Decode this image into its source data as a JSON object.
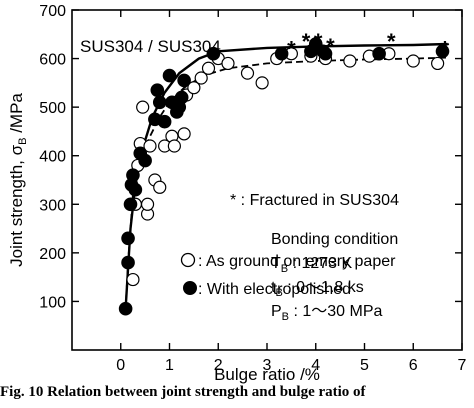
{
  "chart_data": {
    "type": "scatter",
    "xlabel": "Bulge ratio  /%",
    "ylabel": "Joint strength, σ",
    "ylabel_sub": "B",
    "ylabel_unit": " /MPa",
    "xlim": [
      -1,
      7
    ],
    "ylim": [
      0,
      700
    ],
    "x_ticks": [
      0,
      1,
      2,
      3,
      4,
      5,
      6,
      7
    ],
    "y_ticks": [
      100,
      200,
      300,
      400,
      500,
      600,
      700
    ],
    "grid": false,
    "materials_label": "SUS304 / SUS304",
    "fracture_note": "* : Fractured in SUS304",
    "bonding": {
      "title": "Bonding condition",
      "lines": [
        {
          "sym": "T",
          "sub": "B",
          "val": " : 1273 K"
        },
        {
          "sym": "t",
          "sub": "B",
          "val": " : 0～1.8 ks"
        },
        {
          "sym": "P",
          "sub": "B",
          "val": " : 1～30 MPa"
        }
      ]
    },
    "series": [
      {
        "name": "As ground on emery paper",
        "legend_label": " : As ground on emery paper",
        "marker": "open-circle",
        "curve": "dashed",
        "points": [
          [
            0.25,
            145
          ],
          [
            0.3,
            300
          ],
          [
            0.35,
            380
          ],
          [
            0.4,
            425
          ],
          [
            0.45,
            500
          ],
          [
            0.55,
            280
          ],
          [
            0.55,
            300
          ],
          [
            0.6,
            420
          ],
          [
            0.7,
            350
          ],
          [
            0.8,
            335
          ],
          [
            0.9,
            420
          ],
          [
            1.05,
            440
          ],
          [
            1.1,
            420
          ],
          [
            1.3,
            445
          ],
          [
            1.35,
            525
          ],
          [
            1.5,
            540
          ],
          [
            1.65,
            560
          ],
          [
            1.8,
            580
          ],
          [
            2.0,
            600
          ],
          [
            2.2,
            590
          ],
          [
            2.6,
            570
          ],
          [
            2.9,
            550
          ],
          [
            3.2,
            600
          ],
          [
            3.5,
            610
          ],
          [
            3.9,
            605
          ],
          [
            4.2,
            600
          ],
          [
            4.7,
            595
          ],
          [
            5.1,
            605
          ],
          [
            5.5,
            610
          ],
          [
            6.0,
            595
          ],
          [
            6.5,
            590
          ]
        ],
        "fit_curve": [
          [
            0.1,
            85
          ],
          [
            0.15,
            180
          ],
          [
            0.25,
            320
          ],
          [
            0.4,
            390
          ],
          [
            0.6,
            440
          ],
          [
            0.8,
            480
          ],
          [
            1.0,
            510
          ],
          [
            1.3,
            540
          ],
          [
            1.7,
            565
          ],
          [
            2.2,
            580
          ],
          [
            3.0,
            590
          ],
          [
            4.0,
            595
          ],
          [
            5.0,
            598
          ],
          [
            6.0,
            600
          ],
          [
            6.7,
            602
          ]
        ]
      },
      {
        "name": "With electropolished",
        "legend_label": " : With electropolished",
        "marker": "filled-circle",
        "curve": "solid",
        "points": [
          [
            0.1,
            85
          ],
          [
            0.15,
            230
          ],
          [
            0.15,
            180
          ],
          [
            0.2,
            300
          ],
          [
            0.22,
            340
          ],
          [
            0.25,
            360
          ],
          [
            0.3,
            330
          ],
          [
            0.4,
            405
          ],
          [
            0.5,
            390
          ],
          [
            0.7,
            475
          ],
          [
            0.75,
            535
          ],
          [
            0.8,
            510
          ],
          [
            0.9,
            470
          ],
          [
            1.0,
            565
          ],
          [
            1.05,
            510
          ],
          [
            1.15,
            490
          ],
          [
            1.2,
            500
          ],
          [
            1.3,
            555
          ],
          [
            1.25,
            520
          ],
          [
            1.9,
            610
          ],
          [
            3.3,
            610
          ],
          [
            3.9,
            615
          ],
          [
            4.0,
            630
          ],
          [
            4.15,
            615
          ],
          [
            4.2,
            610
          ],
          [
            5.3,
            610
          ],
          [
            6.6,
            615
          ]
        ],
        "fit_curve": [
          [
            0.1,
            85
          ],
          [
            0.2,
            250
          ],
          [
            0.3,
            340
          ],
          [
            0.45,
            415
          ],
          [
            0.65,
            480
          ],
          [
            0.9,
            530
          ],
          [
            1.2,
            570
          ],
          [
            1.6,
            600
          ],
          [
            2.0,
            615
          ],
          [
            3.0,
            622
          ],
          [
            4.0,
            625
          ],
          [
            5.0,
            627
          ],
          [
            6.0,
            628
          ],
          [
            6.7,
            630
          ]
        ]
      }
    ],
    "fractured_points": [
      [
        3.5,
        625
      ],
      [
        3.8,
        640
      ],
      [
        4.05,
        640
      ],
      [
        4.3,
        630
      ],
      [
        5.55,
        640
      ],
      [
        6.65,
        625
      ]
    ],
    "colors": {
      "foreground": "#000000",
      "background": "#ffffff"
    }
  },
  "caption": {
    "text": "Fig. 10  Relation between joint strength and bulge ratio of"
  }
}
